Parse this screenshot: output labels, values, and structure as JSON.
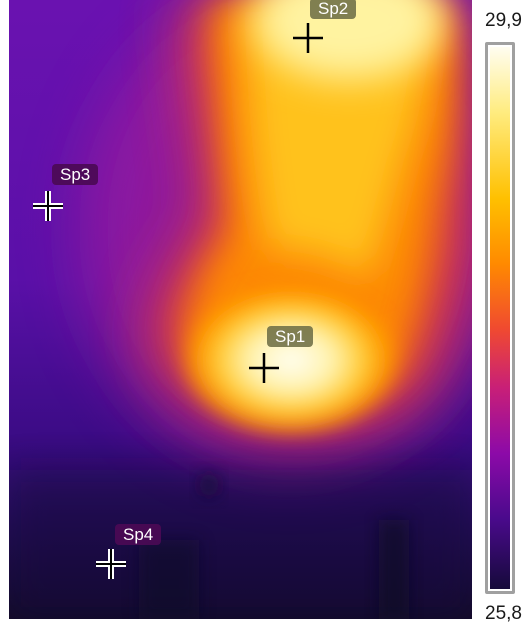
{
  "scale": {
    "max_label": "29,9",
    "min_label": "25,8"
  },
  "spots": [
    {
      "id": "sp1",
      "label": "Sp1",
      "style": "hot"
    },
    {
      "id": "sp2",
      "label": "Sp2",
      "style": "hot"
    },
    {
      "id": "sp3",
      "label": "Sp3",
      "style": "cold"
    },
    {
      "id": "sp4",
      "label": "Sp4",
      "style": "cold"
    }
  ],
  "palette": {
    "hot": "#fffdf0",
    "warm": "#ffb000",
    "mid": "#d0207a",
    "cool": "#6a10b0",
    "cold": "#140a3a"
  }
}
